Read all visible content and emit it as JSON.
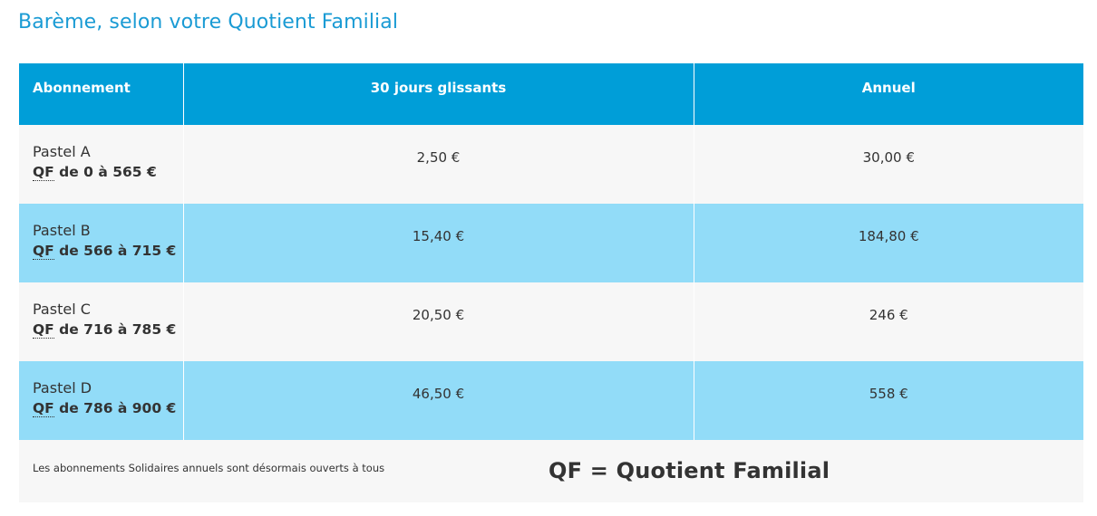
{
  "page": {
    "title": "Barème, selon votre Quotient Familial"
  },
  "table": {
    "headers": [
      "Abonnement",
      "30 jours glissants",
      "Annuel"
    ],
    "rows": [
      {
        "name": "Pastel A",
        "qf": "QF",
        "range": " de 0 à 565 €",
        "monthly": "2,50 €",
        "annual": "30,00 €"
      },
      {
        "name": "Pastel B",
        "qf": "QF",
        "range": " de 566 à 715 €",
        "monthly": "15,40 €",
        "annual": "184,80 €"
      },
      {
        "name": "Pastel C",
        "qf": "QF",
        "range": " de 716 à 785 €",
        "monthly": "20,50 €",
        "annual": "246 €"
      },
      {
        "name": "Pastel D",
        "qf": "QF",
        "range": " de 786 à 900 €",
        "monthly": "46,50 €",
        "annual": "558 €"
      }
    ]
  },
  "footer": {
    "note": "Les abonnements Solidaires annuels sont désormais ouverts à tous",
    "legend": "QF = Quotient Familial"
  },
  "colors": {
    "title": "#1a9bd4",
    "header_bg": "#009ed8",
    "row_blue": "#92dcf8",
    "row_light": "#f7f7f7",
    "text": "#333333"
  }
}
